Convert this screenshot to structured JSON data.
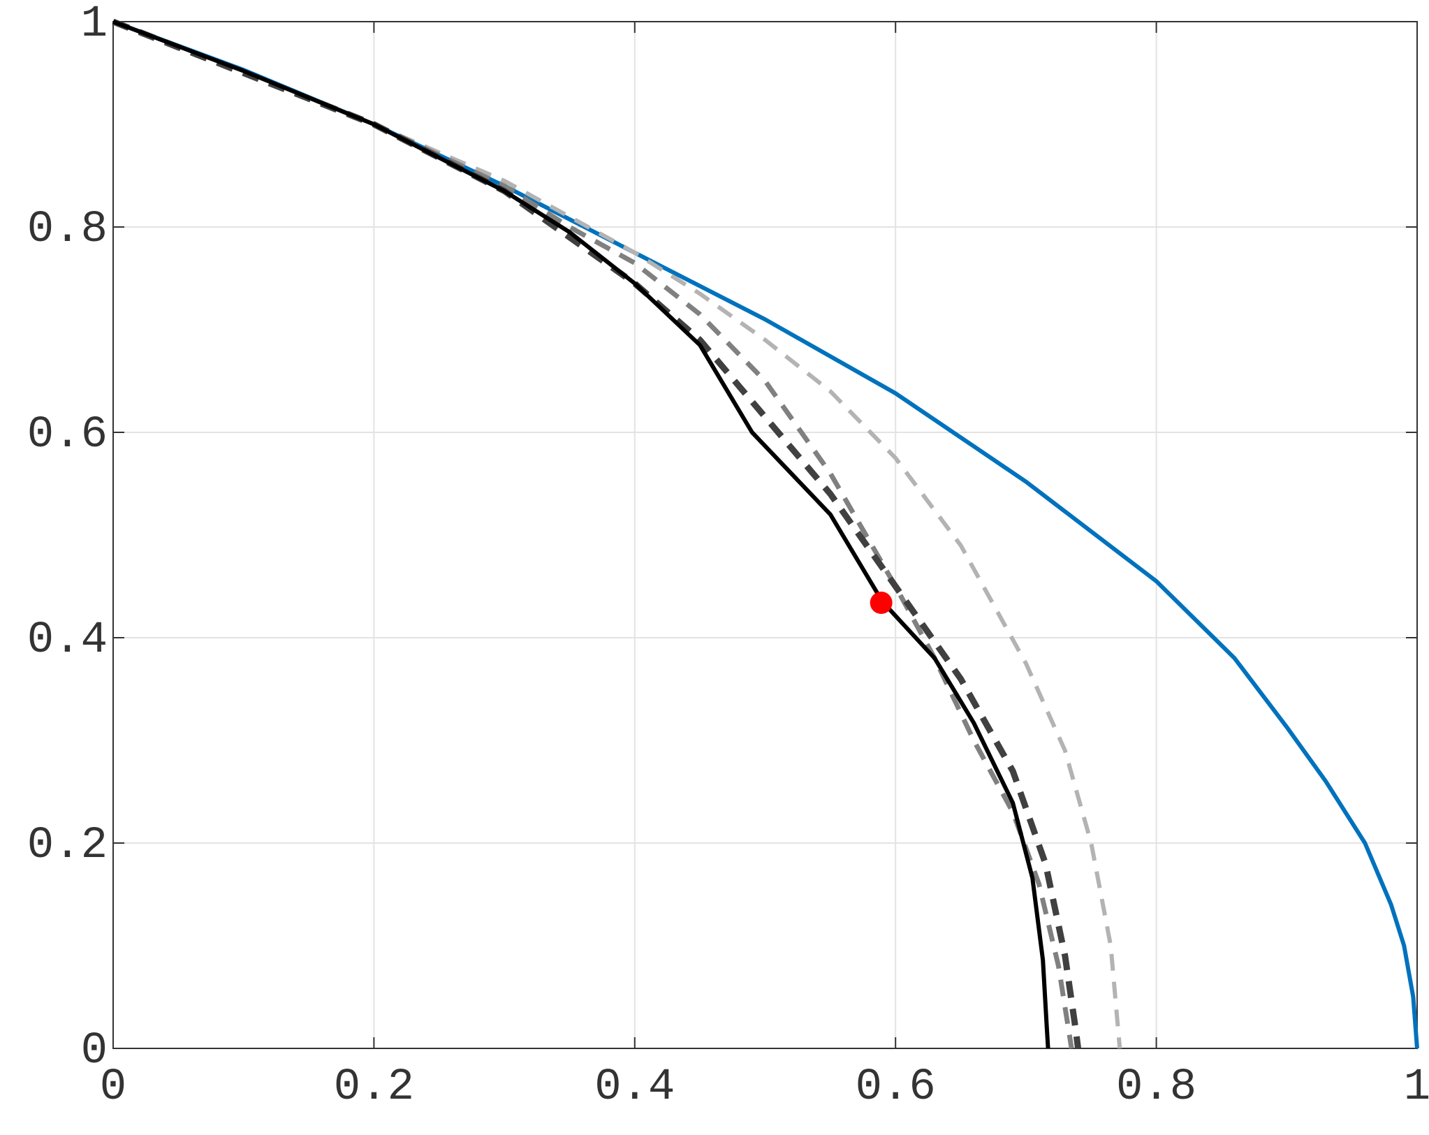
{
  "chart_data": {
    "type": "line",
    "xlim": [
      0,
      1
    ],
    "ylim": [
      0,
      1
    ],
    "xticks": [
      0,
      0.2,
      0.4,
      0.6,
      0.8,
      1
    ],
    "yticks": [
      0,
      0.2,
      0.4,
      0.6,
      0.8,
      1
    ],
    "grid": true,
    "series": [
      {
        "color": "#0072bd",
        "style": "solid",
        "width": 6,
        "x": [
          0,
          0.1,
          0.2,
          0.3,
          0.4,
          0.5,
          0.6,
          0.7,
          0.8,
          0.86,
          0.9,
          0.93,
          0.96,
          0.98,
          0.99,
          0.997,
          1
        ],
        "values": [
          1,
          0.953,
          0.9,
          0.84,
          0.775,
          0.71,
          0.638,
          0.552,
          0.455,
          0.38,
          0.313,
          0.26,
          0.2,
          0.14,
          0.1,
          0.05,
          0
        ]
      },
      {
        "color": "#b3b3b3",
        "style": "dashed",
        "width": 6,
        "x": [
          0,
          0.2,
          0.3,
          0.35,
          0.4,
          0.45,
          0.5,
          0.55,
          0.6,
          0.65,
          0.7,
          0.73,
          0.75,
          0.765,
          0.772
        ],
        "values": [
          1,
          0.9,
          0.845,
          0.81,
          0.775,
          0.735,
          0.69,
          0.64,
          0.575,
          0.49,
          0.375,
          0.29,
          0.2,
          0.1,
          0
        ]
      },
      {
        "color": "#808080",
        "style": "dashed",
        "width": 7,
        "x": [
          0,
          0.2,
          0.3,
          0.35,
          0.4,
          0.45,
          0.5,
          0.55,
          0.6,
          0.63,
          0.66,
          0.69,
          0.71,
          0.725,
          0.735
        ],
        "values": [
          1,
          0.9,
          0.84,
          0.8,
          0.765,
          0.715,
          0.65,
          0.56,
          0.45,
          0.38,
          0.3,
          0.23,
          0.16,
          0.08,
          0
        ]
      },
      {
        "color": "#404040",
        "style": "dashed",
        "width": 9,
        "x": [
          0,
          0.2,
          0.3,
          0.4,
          0.45,
          0.5,
          0.55,
          0.6,
          0.65,
          0.69,
          0.715,
          0.73,
          0.738,
          0.74
        ],
        "values": [
          1,
          0.9,
          0.835,
          0.745,
          0.69,
          0.615,
          0.54,
          0.45,
          0.36,
          0.27,
          0.18,
          0.09,
          0.02,
          0
        ]
      },
      {
        "color": "#000000",
        "style": "solid",
        "width": 6,
        "x": [
          0,
          0.1,
          0.2,
          0.3,
          0.35,
          0.4,
          0.45,
          0.49,
          0.55,
          0.59,
          0.63,
          0.66,
          0.69,
          0.705,
          0.713,
          0.716,
          0.717
        ],
        "values": [
          1,
          0.952,
          0.9,
          0.835,
          0.795,
          0.745,
          0.685,
          0.6,
          0.52,
          0.435,
          0.38,
          0.317,
          0.239,
          0.166,
          0.086,
          0.02,
          0
        ]
      },
      {
        "color": "#ff0000",
        "style": "point",
        "x": [
          0.589
        ],
        "values": [
          0.434
        ]
      }
    ]
  }
}
